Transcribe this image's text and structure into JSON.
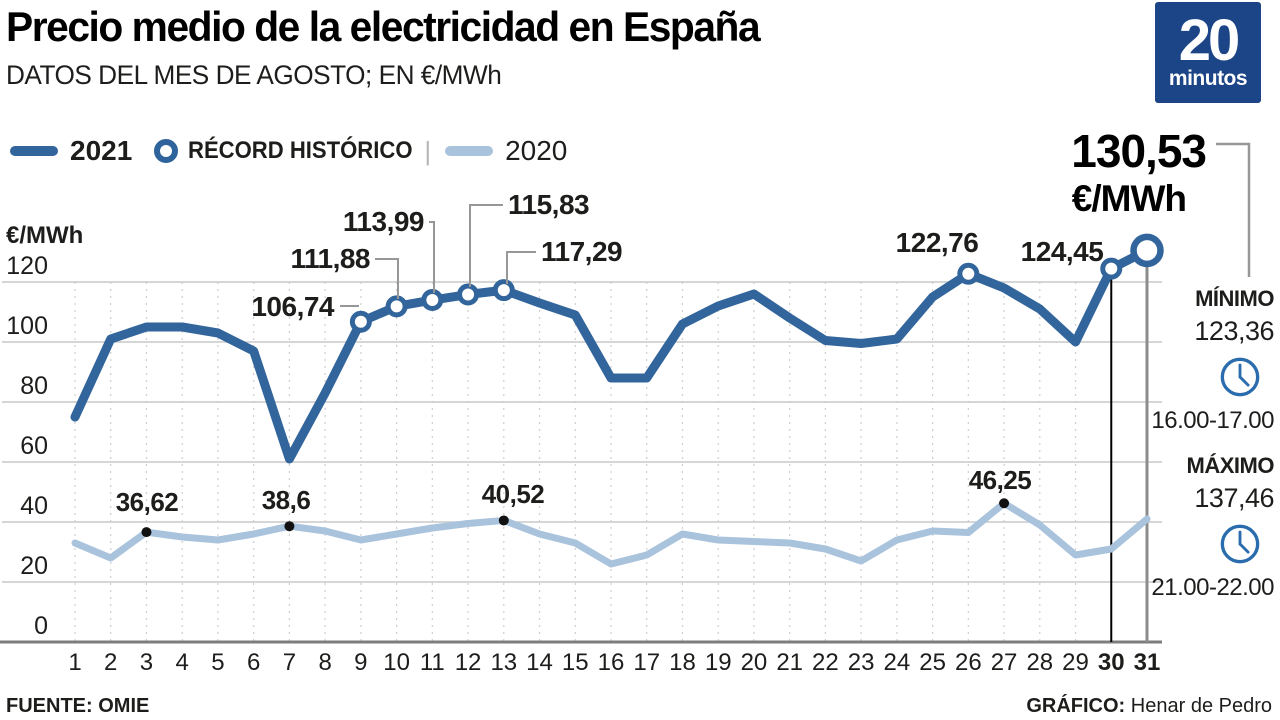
{
  "header": {
    "title": "Precio medio de la electricidad en España",
    "subtitle": "DATOS DEL MES DE AGOSTO; EN €/MWh"
  },
  "logo": {
    "line1": "20",
    "line2": "minutos"
  },
  "legend": {
    "item_2021": "2021",
    "item_record": "RÉCORD HISTÓRICO",
    "divider": "|",
    "item_2020": "2020"
  },
  "colors": {
    "line_2021": "#32659b",
    "line_2020": "#a9c3dd",
    "grid": "#c9c9c9",
    "grid_dash": "#cfcfcf",
    "axis": "#7d7d7d",
    "text": "#1d1d1b",
    "clock_blue": "#2a6cad",
    "logo_bg": "#1b4587",
    "day30_line": "#000000",
    "day31_line": "#8c8c8c",
    "connector": "#979797",
    "dot_black": "#111111"
  },
  "chart_data": {
    "type": "line",
    "title": "Precio medio de la electricidad en España",
    "xlabel": "",
    "ylabel": "€/MWh",
    "x": [
      1,
      2,
      3,
      4,
      5,
      6,
      7,
      8,
      9,
      10,
      11,
      12,
      13,
      14,
      15,
      16,
      17,
      18,
      19,
      20,
      21,
      22,
      23,
      24,
      25,
      26,
      27,
      28,
      29,
      30,
      31
    ],
    "yticks": [
      0,
      20,
      40,
      60,
      80,
      100,
      120
    ],
    "ylim": [
      0,
      140
    ],
    "grid": true,
    "legend_position": "top-left",
    "series": [
      {
        "name": "2021",
        "color": "#32659b",
        "values": [
          75,
          101,
          105,
          105,
          103,
          97,
          61,
          83,
          106.74,
          111.88,
          113.99,
          115.83,
          117.29,
          113,
          109,
          88,
          88,
          106,
          112,
          116,
          108,
          100.5,
          99.5,
          101,
          115,
          122.76,
          118,
          111,
          100,
          124.45,
          130.53
        ]
      },
      {
        "name": "2020",
        "color": "#a9c3dd",
        "values": [
          33,
          28,
          36.62,
          35,
          34,
          36,
          38.6,
          37,
          34,
          36,
          38,
          39.5,
          40.52,
          36,
          33,
          26,
          29,
          36,
          34,
          33.5,
          33,
          31,
          27,
          34,
          37,
          36.5,
          46.25,
          39,
          29,
          31,
          41
        ]
      }
    ],
    "record_days": [
      9,
      10,
      11,
      12,
      13,
      26,
      30,
      31
    ],
    "annotations_2021": [
      {
        "day": 9,
        "label": "106,74"
      },
      {
        "day": 10,
        "label": "111,88"
      },
      {
        "day": 11,
        "label": "113,99"
      },
      {
        "day": 12,
        "label": "115,83"
      },
      {
        "day": 13,
        "label": "117,29"
      },
      {
        "day": 26,
        "label": "122,76"
      },
      {
        "day": 30,
        "label": "124,45"
      }
    ],
    "annotations_2020": [
      {
        "day": 3,
        "label": "36,62"
      },
      {
        "day": 7,
        "label": "38,6"
      },
      {
        "day": 13,
        "label": "40,52"
      },
      {
        "day": 27,
        "label": "46,25"
      }
    ],
    "highlight": {
      "day": 31,
      "value_label": "130,53",
      "unit": "€/MWh"
    },
    "bold_x_labels": [
      30,
      31
    ]
  },
  "panel": {
    "min_title": "MÍNIMO",
    "min_value": "123,36",
    "min_hours": "16.00-17.00",
    "max_title": "MÁXIMO",
    "max_value": "137,46",
    "max_hours": "21.00-22.00"
  },
  "footer": {
    "source_label": "FUENTE:",
    "source": "OMIE",
    "credit_label": "GRÁFICO:",
    "credit": "Henar de Pedro"
  }
}
